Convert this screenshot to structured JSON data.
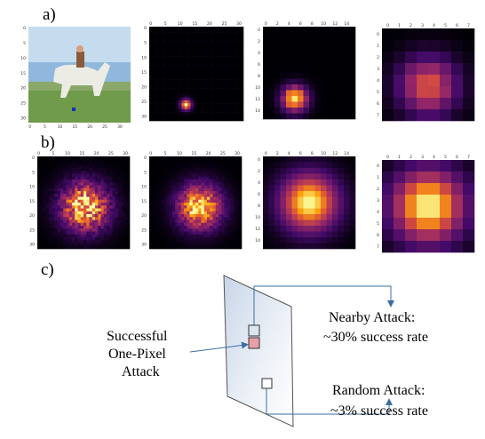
{
  "panels": {
    "a": {
      "label": "a)"
    },
    "b": {
      "label": "b)"
    },
    "c": {
      "label": "c)",
      "left_text": [
        "Successful",
        "One-Pixel",
        "Attack"
      ],
      "nearby": [
        "Nearby Attack:",
        "~30% success rate"
      ],
      "random": [
        "Random Attack:",
        "~3% success rate"
      ]
    }
  },
  "tick_sets": {
    "s32": [
      0,
      5,
      10,
      15,
      20,
      25,
      30
    ],
    "s16": [
      0,
      2,
      4,
      6,
      8,
      10,
      12,
      14
    ],
    "s8": [
      0,
      1,
      2,
      3,
      4,
      5,
      6,
      7
    ]
  }
}
